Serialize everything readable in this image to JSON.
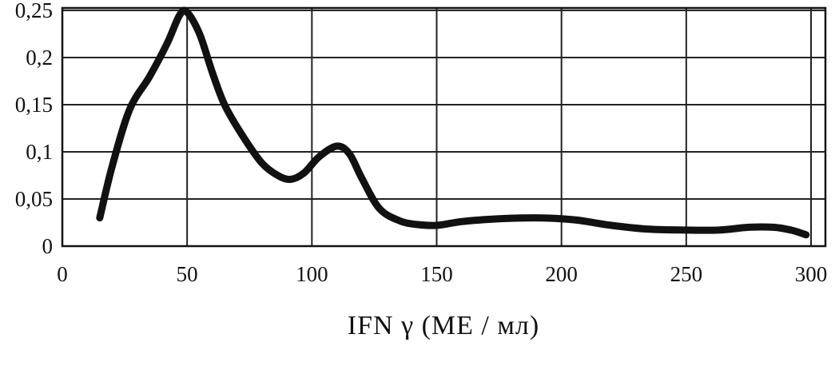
{
  "chart_data": {
    "type": "line",
    "title": "",
    "xlabel": "IFN γ (МЕ / мл)",
    "ylabel": "",
    "xlim": [
      0,
      300
    ],
    "ylim": [
      0,
      0.25
    ],
    "x_ticks": [
      {
        "value": 0,
        "label": "0"
      },
      {
        "value": 50,
        "label": "50"
      },
      {
        "value": 100,
        "label": "100"
      },
      {
        "value": 150,
        "label": "150"
      },
      {
        "value": 200,
        "label": "200"
      },
      {
        "value": 250,
        "label": "250"
      },
      {
        "value": 300,
        "label": "300"
      }
    ],
    "y_ticks": [
      {
        "value": 0,
        "label": "0"
      },
      {
        "value": 0.05,
        "label": "0,05"
      },
      {
        "value": 0.1,
        "label": "0,1"
      },
      {
        "value": 0.15,
        "label": "0,15"
      },
      {
        "value": 0.2,
        "label": "0,2"
      },
      {
        "value": 0.25,
        "label": "0,25"
      }
    ],
    "grid": true,
    "legend": "none",
    "series": [
      {
        "color": "#111111",
        "x": [
          15,
          20,
          27,
          35,
          42,
          47,
          50,
          55,
          60,
          65,
          72,
          80,
          87,
          92,
          97,
          103,
          110,
          115,
          120,
          127,
          135,
          142,
          150,
          160,
          175,
          190,
          205,
          220,
          235,
          250,
          263,
          275,
          285,
          292,
          298
        ],
        "y": [
          0.03,
          0.085,
          0.145,
          0.18,
          0.215,
          0.245,
          0.248,
          0.225,
          0.185,
          0.15,
          0.118,
          0.088,
          0.074,
          0.071,
          0.078,
          0.095,
          0.106,
          0.098,
          0.072,
          0.04,
          0.027,
          0.023,
          0.022,
          0.026,
          0.029,
          0.03,
          0.028,
          0.022,
          0.018,
          0.017,
          0.017,
          0.02,
          0.02,
          0.017,
          0.012
        ]
      }
    ]
  }
}
